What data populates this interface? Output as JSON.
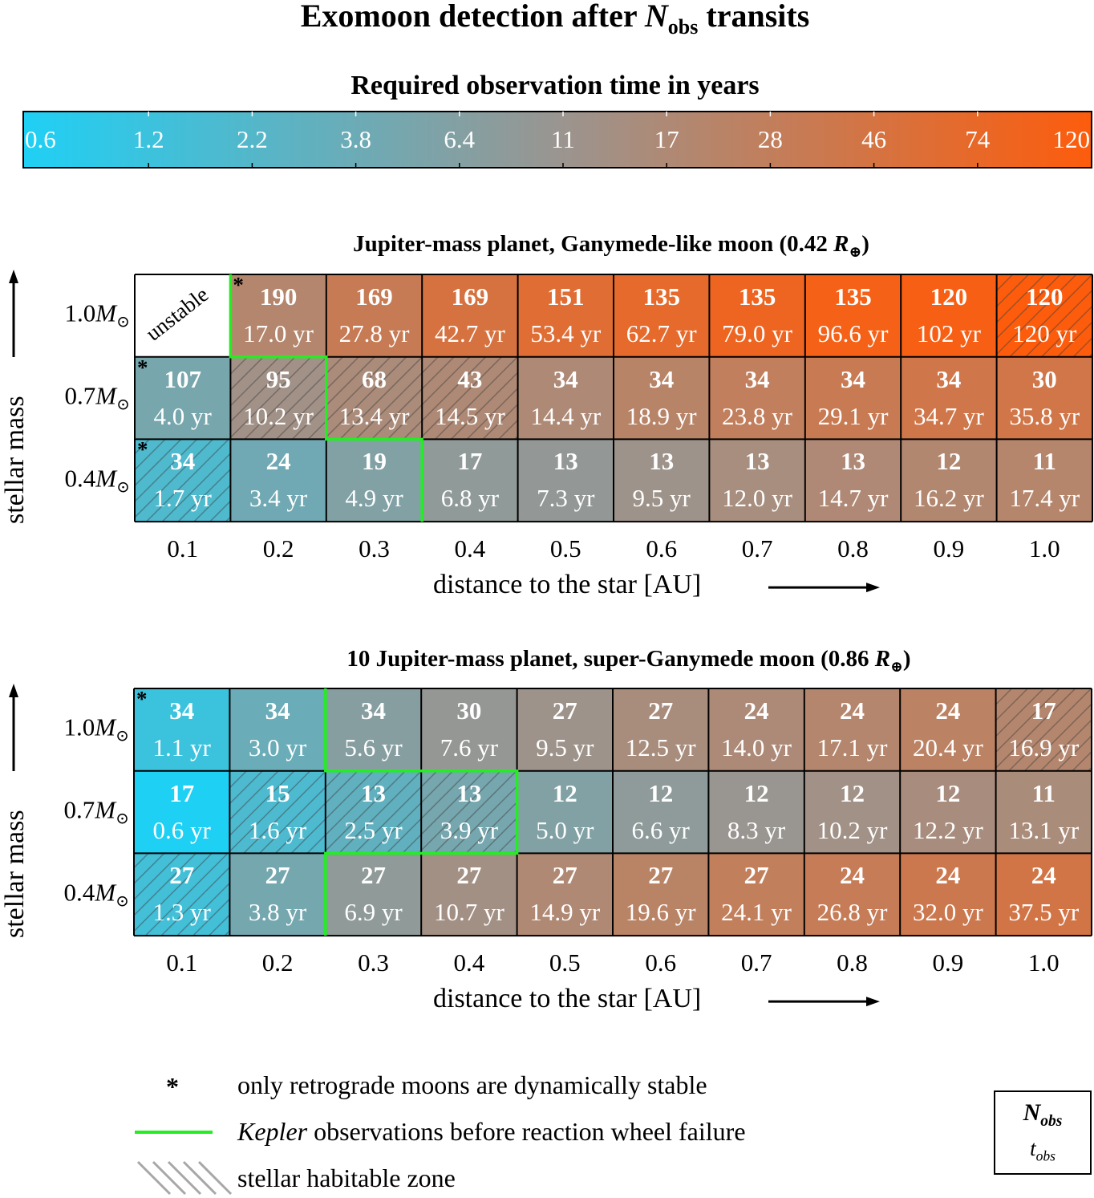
{
  "chart_data": [
    {
      "type": "heatmap",
      "title": "Exomoon detection after N_obs transits",
      "title_parts": {
        "pre": "Exomoon detection after ",
        "var": "N",
        "sub": "obs",
        "post": " transits"
      },
      "colorbar": {
        "title": "Required observation time in years",
        "ticks": [
          "0.6",
          "1.2",
          "2.2",
          "3.8",
          "6.4",
          "11",
          "17",
          "28",
          "46",
          "74",
          "120"
        ],
        "range": [
          0.6,
          120
        ],
        "scale": "log",
        "colors": {
          "low": "#1fd0f5",
          "mid": "#9a9590",
          "high": "#fd5c0c"
        }
      }
    },
    {
      "type": "heatmap",
      "panel_title": "Jupiter-mass planet, Ganymede-like moon (0.42 R⊕)",
      "title_parts": {
        "pre": "Jupiter-mass planet, Ganymede-like moon (0.42 ",
        "var": "R",
        "sub": "⊕",
        "post": ")"
      },
      "xlabel": "distance to the star [AU]",
      "ylabel": "stellar mass",
      "x": [
        "0.1",
        "0.2",
        "0.3",
        "0.4",
        "0.5",
        "0.6",
        "0.7",
        "0.8",
        "0.9",
        "1.0"
      ],
      "y": [
        "1.0M⊙",
        "0.7M⊙",
        "0.4M⊙"
      ],
      "y_values": [
        "1.0",
        "0.7",
        "0.4"
      ],
      "unstable_label": "unstable",
      "N_obs": [
        [
          null,
          190,
          169,
          169,
          151,
          135,
          135,
          135,
          120,
          120
        ],
        [
          107,
          95,
          68,
          43,
          34,
          34,
          34,
          34,
          34,
          30
        ],
        [
          34,
          24,
          19,
          17,
          13,
          13,
          13,
          13,
          12,
          11
        ]
      ],
      "t_obs_years": [
        [
          null,
          17.0,
          27.8,
          42.7,
          53.4,
          62.7,
          79.0,
          96.6,
          102,
          120
        ],
        [
          4.0,
          10.2,
          13.4,
          14.5,
          14.4,
          18.9,
          23.8,
          29.1,
          34.7,
          35.8
        ],
        [
          1.7,
          3.4,
          4.9,
          6.8,
          7.3,
          9.5,
          12.0,
          14.7,
          16.2,
          17.4
        ]
      ],
      "t_obs_labels": [
        [
          null,
          "17.0 yr",
          "27.8 yr",
          "42.7 yr",
          "53.4 yr",
          "62.7 yr",
          "79.0 yr",
          "96.6 yr",
          "102 yr",
          "120 yr"
        ],
        [
          "4.0 yr",
          "10.2 yr",
          "13.4 yr",
          "14.5 yr",
          "14.4 yr",
          "18.9 yr",
          "23.8 yr",
          "29.1 yr",
          "34.7 yr",
          "35.8 yr"
        ],
        [
          "1.7 yr",
          "3.4 yr",
          "4.9 yr",
          "6.8 yr",
          "7.3 yr",
          "9.5 yr",
          "12.0 yr",
          "14.7 yr",
          "16.2 yr",
          "17.4 yr"
        ]
      ],
      "retrograde_only": [
        [
          0,
          1
        ],
        [
          1,
          0
        ],
        [
          2,
          0
        ]
      ],
      "habitable_zone": [
        [
          0,
          9
        ],
        [
          1,
          1
        ],
        [
          1,
          2
        ],
        [
          1,
          3
        ],
        [
          2,
          0
        ]
      ],
      "kepler_boundary_cols_by_row": [
        1,
        2,
        3
      ]
    },
    {
      "type": "heatmap",
      "panel_title": "10 Jupiter-mass planet, super-Ganymede moon (0.86 R⊕)",
      "title_parts": {
        "pre": "10 Jupiter-mass planet, super-Ganymede moon (0.86 ",
        "var": "R",
        "sub": "⊕",
        "post": ")"
      },
      "xlabel": "distance to the star [AU]",
      "ylabel": "stellar mass",
      "x": [
        "0.1",
        "0.2",
        "0.3",
        "0.4",
        "0.5",
        "0.6",
        "0.7",
        "0.8",
        "0.9",
        "1.0"
      ],
      "y": [
        "1.0M⊙",
        "0.7M⊙",
        "0.4M⊙"
      ],
      "y_values": [
        "1.0",
        "0.7",
        "0.4"
      ],
      "N_obs": [
        [
          34,
          34,
          34,
          30,
          27,
          27,
          24,
          24,
          24,
          17
        ],
        [
          17,
          15,
          13,
          13,
          12,
          12,
          12,
          12,
          12,
          11
        ],
        [
          27,
          27,
          27,
          27,
          27,
          27,
          27,
          24,
          24,
          24
        ]
      ],
      "t_obs_years": [
        [
          1.1,
          3.0,
          5.6,
          7.6,
          9.5,
          12.5,
          14.0,
          17.1,
          20.4,
          16.9
        ],
        [
          0.6,
          1.6,
          2.5,
          3.9,
          5.0,
          6.6,
          8.3,
          10.2,
          12.2,
          13.1
        ],
        [
          1.3,
          3.8,
          6.9,
          10.7,
          14.9,
          19.6,
          24.1,
          26.8,
          32.0,
          37.5
        ]
      ],
      "t_obs_labels": [
        [
          "1.1 yr",
          "3.0 yr",
          "5.6 yr",
          "7.6 yr",
          "9.5 yr",
          "12.5 yr",
          "14.0 yr",
          "17.1 yr",
          "20.4 yr",
          "16.9 yr"
        ],
        [
          "0.6 yr",
          "1.6 yr",
          "2.5 yr",
          "3.9 yr",
          "5.0 yr",
          "6.6 yr",
          "8.3 yr",
          "10.2 yr",
          "12.2 yr",
          "13.1 yr"
        ],
        [
          "1.3 yr",
          "3.8 yr",
          "6.9 yr",
          "10.7 yr",
          "14.9 yr",
          "19.6 yr",
          "24.1 yr",
          "26.8 yr",
          "32.0 yr",
          "37.5 yr"
        ]
      ],
      "retrograde_only": [
        [
          0,
          0
        ]
      ],
      "habitable_zone": [
        [
          0,
          9
        ],
        [
          1,
          1
        ],
        [
          1,
          2
        ],
        [
          1,
          3
        ],
        [
          2,
          0
        ]
      ],
      "kepler_boundary_cols_by_row": [
        2,
        4,
        2
      ]
    }
  ],
  "legend": {
    "star_symbol": "*",
    "star_text": "only retrograde moons are dynamically stable",
    "kepler_text_italic": "Kepler",
    "kepler_text_rest": " observations before reaction wheel failure",
    "hz_text": "stellar habitable zone",
    "kepler_color": "#22ee22",
    "key_n": "N",
    "key_n_sub": "obs",
    "key_t": "t",
    "key_t_sub": "obs"
  }
}
